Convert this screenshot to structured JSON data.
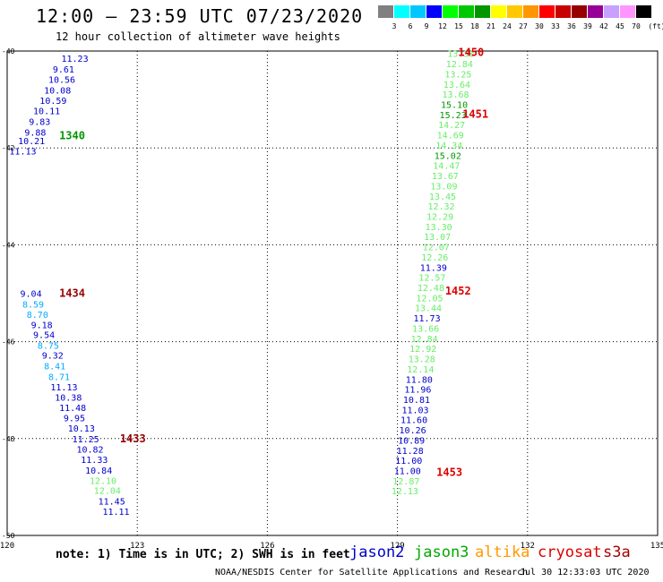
{
  "header": {
    "title": "12:00 — 23:59 UTC 07/23/2020",
    "subtitle": "12 hour collection of altimeter wave heights"
  },
  "legend": {
    "unit": "(ft)",
    "bins": [
      {
        "label": "3",
        "color": "#808080"
      },
      {
        "label": "6",
        "color": "#00ffff"
      },
      {
        "label": "9",
        "color": "#00c8ff"
      },
      {
        "label": "12",
        "color": "#0000ff"
      },
      {
        "label": "15",
        "color": "#00ff00"
      },
      {
        "label": "18",
        "color": "#00c800"
      },
      {
        "label": "21",
        "color": "#009600"
      },
      {
        "label": "24",
        "color": "#ffff00"
      },
      {
        "label": "27",
        "color": "#ffc800"
      },
      {
        "label": "30",
        "color": "#ff9600"
      },
      {
        "label": "33",
        "color": "#ff0000"
      },
      {
        "label": "36",
        "color": "#c80000"
      },
      {
        "label": "39",
        "color": "#960000"
      },
      {
        "label": "42",
        "color": "#960096"
      },
      {
        "label": "45",
        "color": "#c8a0ff"
      },
      {
        "label": "70",
        "color": "#ff96ff"
      },
      {
        "label": "",
        "color": "#000000"
      }
    ]
  },
  "footer": {
    "note": "note: 1) Time is in UTC; 2) SWH is in feet",
    "satellites": [
      {
        "name": "jason2",
        "color": "#0000cc"
      },
      {
        "name": "jason3",
        "color": "#00aa00"
      },
      {
        "name": "altika",
        "color": "#ff9900"
      },
      {
        "name": "cryosat",
        "color": "#dd0000"
      },
      {
        "name": "s3a",
        "color": "#aa0000"
      }
    ],
    "credit": "NOAA/NESDIS Center for Satellite Applications and Research",
    "timestamp": "Jul 30 12:33:03 UTC 2020"
  },
  "chart_data": {
    "type": "scatter",
    "title": "12:00 — 23:59 UTC 07/23/2020",
    "xlabel": "",
    "ylabel": "",
    "xlim": [
      120,
      135
    ],
    "ylim": [
      -50,
      -40
    ],
    "x_ticks": [
      "120",
      "123",
      "126",
      "129",
      "132",
      "135"
    ],
    "y_ticks": [
      "-40",
      "-42",
      "-44",
      "-46",
      "-48",
      "-50"
    ],
    "grid": true,
    "time_labels": [
      {
        "text": "1340",
        "x": 121.2,
        "y": -41.75,
        "color": "#009600"
      },
      {
        "text": "1434",
        "x": 121.2,
        "y": -45.0,
        "color": "#960000"
      },
      {
        "text": "1433",
        "x": 122.6,
        "y": -48.0,
        "color": "#960000"
      },
      {
        "text": "1450",
        "x": 130.4,
        "y": -40.03,
        "color": "#dd0000"
      },
      {
        "text": "1451",
        "x": 130.5,
        "y": -41.3,
        "color": "#dd0000"
      },
      {
        "text": "1452",
        "x": 130.1,
        "y": -44.95,
        "color": "#dd0000"
      },
      {
        "text": "1453",
        "x": 129.9,
        "y": -48.7,
        "color": "#dd0000"
      }
    ],
    "series": [
      {
        "points": [
          {
            "label": "11.23",
            "x": 121.25,
            "y": -40.15,
            "color": "#0000cc"
          },
          {
            "label": "9.61",
            "x": 121.05,
            "y": -40.37,
            "color": "#0000cc"
          },
          {
            "label": "10.56",
            "x": 120.95,
            "y": -40.58,
            "color": "#0000cc"
          },
          {
            "label": "10.08",
            "x": 120.85,
            "y": -40.8,
            "color": "#0000cc"
          },
          {
            "label": "10.59",
            "x": 120.75,
            "y": -41.02,
            "color": "#0000cc"
          },
          {
            "label": "10.11",
            "x": 120.6,
            "y": -41.23,
            "color": "#0000cc"
          },
          {
            "label": "9.83",
            "x": 120.5,
            "y": -41.45,
            "color": "#0000cc"
          },
          {
            "label": "9.88",
            "x": 120.4,
            "y": -41.67,
            "color": "#0000cc"
          },
          {
            "label": "10.21",
            "x": 120.25,
            "y": -41.85,
            "color": "#0000cc"
          },
          {
            "label": "11.13",
            "x": 120.05,
            "y": -42.06,
            "color": "#0000cc"
          }
        ]
      },
      {
        "points": [
          {
            "label": "9.04",
            "x": 120.3,
            "y": -45.0,
            "color": "#0000cc"
          },
          {
            "label": "8.59",
            "x": 120.35,
            "y": -45.22,
            "color": "#00aaff"
          },
          {
            "label": "8.70",
            "x": 120.45,
            "y": -45.43,
            "color": "#00aaff"
          },
          {
            "label": "9.18",
            "x": 120.55,
            "y": -45.65,
            "color": "#0000cc"
          },
          {
            "label": "9.54",
            "x": 120.6,
            "y": -45.85,
            "color": "#0000cc"
          },
          {
            "label": "8.75",
            "x": 120.7,
            "y": -46.07,
            "color": "#00aaff"
          },
          {
            "label": "9.32",
            "x": 120.8,
            "y": -46.28,
            "color": "#0000cc"
          },
          {
            "label": "8.41",
            "x": 120.85,
            "y": -46.5,
            "color": "#00aaff"
          },
          {
            "label": "8.71",
            "x": 120.95,
            "y": -46.72,
            "color": "#00aaff"
          },
          {
            "label": "11.13",
            "x": 121.0,
            "y": -46.93,
            "color": "#0000cc"
          },
          {
            "label": "10.38",
            "x": 121.1,
            "y": -47.14,
            "color": "#0000cc"
          },
          {
            "label": "11.48",
            "x": 121.2,
            "y": -47.36,
            "color": "#0000cc"
          },
          {
            "label": "9.95",
            "x": 121.3,
            "y": -47.57,
            "color": "#0000cc"
          },
          {
            "label": "10.13",
            "x": 121.4,
            "y": -47.78,
            "color": "#0000cc"
          },
          {
            "label": "11.25",
            "x": 121.5,
            "y": -48.0,
            "color": "#0000cc"
          },
          {
            "label": "10.82",
            "x": 121.6,
            "y": -48.22,
            "color": "#0000cc"
          },
          {
            "label": "11.33",
            "x": 121.7,
            "y": -48.43,
            "color": "#0000cc"
          },
          {
            "label": "10.84",
            "x": 121.8,
            "y": -48.65,
            "color": "#0000cc"
          },
          {
            "label": "12.10",
            "x": 121.9,
            "y": -48.86,
            "color": "#66ee66"
          },
          {
            "label": "12.04",
            "x": 122.0,
            "y": -49.07,
            "color": "#66ee66"
          },
          {
            "label": "11.45",
            "x": 122.1,
            "y": -49.29,
            "color": "#0000cc"
          },
          {
            "label": "11.11",
            "x": 122.2,
            "y": -49.5,
            "color": "#0000cc"
          }
        ]
      },
      {
        "points": [
          {
            "label": "13.30",
            "x": 130.15,
            "y": -40.05,
            "color": "#66ee66"
          },
          {
            "label": "12.84",
            "x": 130.12,
            "y": -40.26,
            "color": "#66ee66"
          },
          {
            "label": "13.25",
            "x": 130.09,
            "y": -40.47,
            "color": "#66ee66"
          },
          {
            "label": "13.64",
            "x": 130.06,
            "y": -40.68,
            "color": "#66ee66"
          },
          {
            "label": "13.68",
            "x": 130.03,
            "y": -40.89,
            "color": "#66ee66"
          },
          {
            "label": "15.10",
            "x": 130.0,
            "y": -41.1,
            "color": "#009600"
          },
          {
            "label": "15.23",
            "x": 129.97,
            "y": -41.31,
            "color": "#009600"
          },
          {
            "label": "14.27",
            "x": 129.94,
            "y": -41.52,
            "color": "#66ee66"
          },
          {
            "label": "14.69",
            "x": 129.91,
            "y": -41.73,
            "color": "#66ee66"
          },
          {
            "label": "14.34",
            "x": 129.88,
            "y": -41.94,
            "color": "#66ee66"
          },
          {
            "label": "15.02",
            "x": 129.85,
            "y": -42.15,
            "color": "#009600"
          },
          {
            "label": "14.47",
            "x": 129.82,
            "y": -42.36,
            "color": "#66ee66"
          },
          {
            "label": "13.67",
            "x": 129.79,
            "y": -42.57,
            "color": "#66ee66"
          },
          {
            "label": "13.09",
            "x": 129.76,
            "y": -42.78,
            "color": "#66ee66"
          },
          {
            "label": "13.45",
            "x": 129.73,
            "y": -42.99,
            "color": "#66ee66"
          },
          {
            "label": "12.32",
            "x": 129.7,
            "y": -43.2,
            "color": "#66ee66"
          },
          {
            "label": "12.29",
            "x": 129.67,
            "y": -43.41,
            "color": "#66ee66"
          },
          {
            "label": "13.30",
            "x": 129.64,
            "y": -43.62,
            "color": "#66ee66"
          },
          {
            "label": "13.07",
            "x": 129.61,
            "y": -43.83,
            "color": "#66ee66"
          },
          {
            "label": "12.07",
            "x": 129.58,
            "y": -44.04,
            "color": "#66ee66"
          },
          {
            "label": "12.26",
            "x": 129.55,
            "y": -44.25,
            "color": "#66ee66"
          },
          {
            "label": "11.39",
            "x": 129.52,
            "y": -44.46,
            "color": "#0000cc"
          },
          {
            "label": "12.57",
            "x": 129.49,
            "y": -44.67,
            "color": "#66ee66"
          },
          {
            "label": "12.48",
            "x": 129.46,
            "y": -44.88,
            "color": "#66ee66"
          },
          {
            "label": "12.05",
            "x": 129.43,
            "y": -45.09,
            "color": "#66ee66"
          },
          {
            "label": "13.44",
            "x": 129.4,
            "y": -45.3,
            "color": "#66ee66"
          },
          {
            "label": "11.73",
            "x": 129.37,
            "y": -45.51,
            "color": "#0000cc"
          },
          {
            "label": "13.66",
            "x": 129.34,
            "y": -45.72,
            "color": "#66ee66"
          },
          {
            "label": "12.84",
            "x": 129.31,
            "y": -45.93,
            "color": "#66ee66"
          },
          {
            "label": "12.92",
            "x": 129.28,
            "y": -46.14,
            "color": "#66ee66"
          },
          {
            "label": "13.28",
            "x": 129.25,
            "y": -46.35,
            "color": "#66ee66"
          },
          {
            "label": "12.14",
            "x": 129.22,
            "y": -46.56,
            "color": "#66ee66"
          },
          {
            "label": "11.80",
            "x": 129.19,
            "y": -46.77,
            "color": "#0000cc"
          },
          {
            "label": "11.96",
            "x": 129.16,
            "y": -46.98,
            "color": "#0000cc"
          },
          {
            "label": "10.81",
            "x": 129.13,
            "y": -47.19,
            "color": "#0000cc"
          },
          {
            "label": "11.03",
            "x": 129.1,
            "y": -47.4,
            "color": "#0000cc"
          },
          {
            "label": "11.60",
            "x": 129.07,
            "y": -47.61,
            "color": "#0000cc"
          },
          {
            "label": "10.26",
            "x": 129.04,
            "y": -47.82,
            "color": "#0000cc"
          },
          {
            "label": "10.89",
            "x": 129.01,
            "y": -48.03,
            "color": "#0000cc"
          },
          {
            "label": "11.28",
            "x": 128.98,
            "y": -48.24,
            "color": "#0000cc"
          },
          {
            "label": "11.00",
            "x": 128.95,
            "y": -48.45,
            "color": "#0000cc"
          },
          {
            "label": "11.00",
            "x": 128.92,
            "y": -48.66,
            "color": "#0000cc"
          },
          {
            "label": "12.87",
            "x": 128.89,
            "y": -48.87,
            "color": "#66ee66"
          },
          {
            "label": "12.13",
            "x": 128.86,
            "y": -49.08,
            "color": "#66ee66"
          }
        ]
      }
    ]
  }
}
